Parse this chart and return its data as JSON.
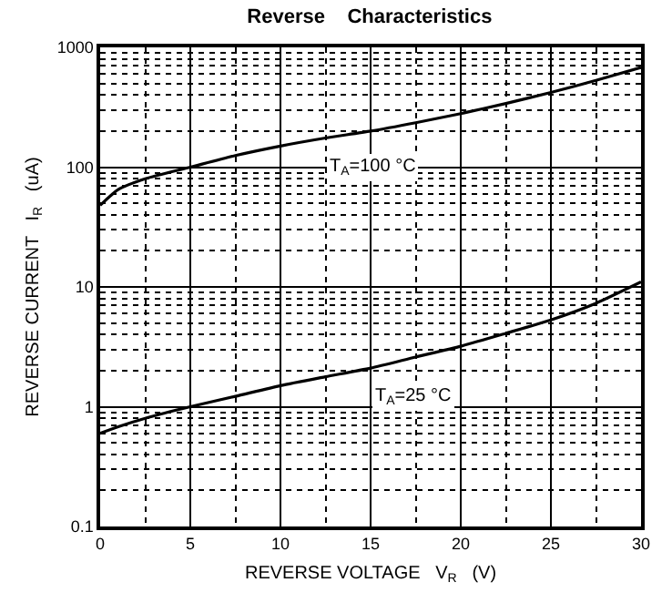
{
  "chart_data": {
    "type": "line",
    "title": "Reverse    Characteristics",
    "xlabel": "REVERSE VOLTAGE   V$_{R}$   (V)",
    "ylabel": "REVERSE CURRENT   I$_{R}$   (uA)",
    "x": [
      0,
      1,
      2.5,
      5,
      7.5,
      10,
      12.5,
      15,
      17.5,
      20,
      22.5,
      25,
      27.5,
      30
    ],
    "series": [
      {
        "color": "#000000",
        "values": [
          48,
          65,
          80,
          100,
          125,
          150,
          175,
          200,
          235,
          280,
          340,
          420,
          530,
          680
        ]
      },
      {
        "color": "#000000",
        "values": [
          0.6,
          0.68,
          0.8,
          1.0,
          1.22,
          1.5,
          1.78,
          2.1,
          2.6,
          3.2,
          4.1,
          5.3,
          7.3,
          11
        ]
      }
    ],
    "annotations": [
      {
        "text": "T$_{A}$=100 °C",
        "x": 12.5,
        "y": 175
      },
      {
        "text": "T$_{A}$=25 °C",
        "x": 15,
        "y": 2.1
      }
    ],
    "xlim": [
      0,
      30
    ],
    "xticks": [
      0,
      5,
      10,
      15,
      20,
      25,
      30
    ],
    "ylim": [
      0.1,
      1000
    ],
    "yticks": [
      0.1,
      1,
      10,
      100,
      1000
    ],
    "log": "y",
    "grid": true,
    "marker": "none",
    "line_style": "solid"
  }
}
